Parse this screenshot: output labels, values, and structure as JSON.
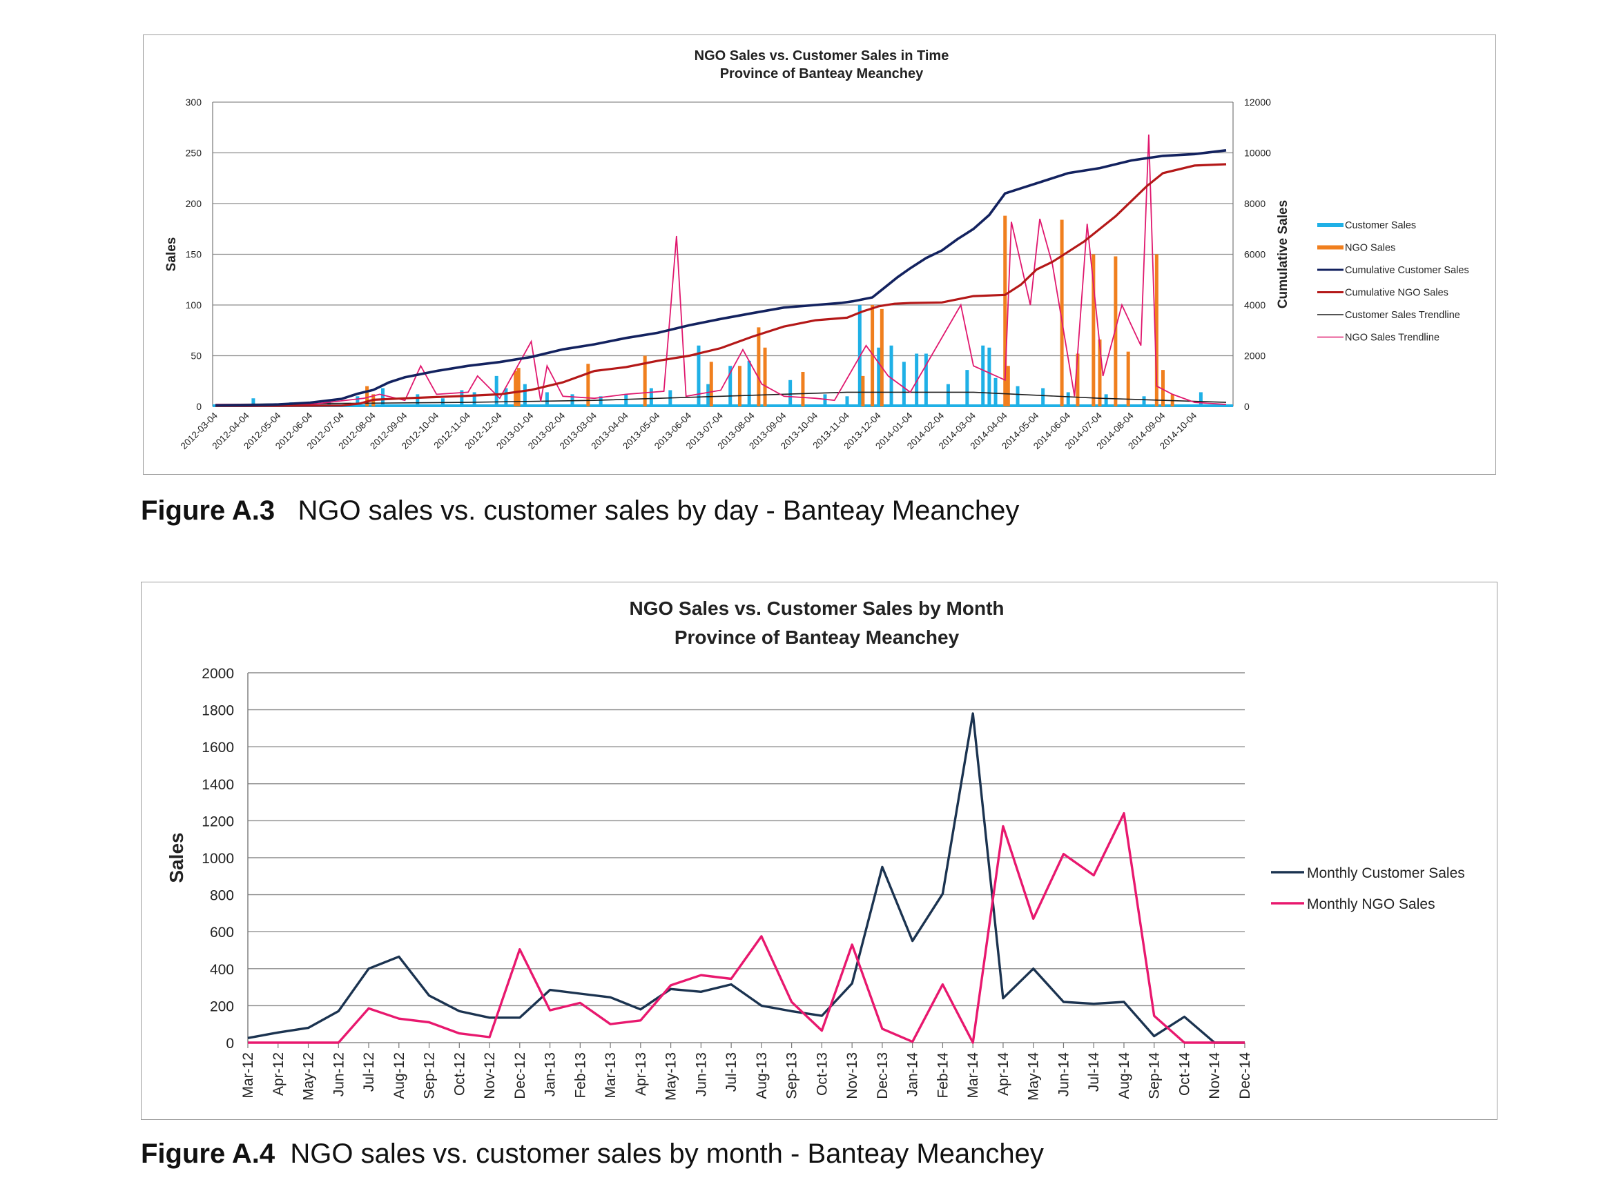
{
  "figures": [
    {
      "caption_label": "Figure A.3",
      "caption_text": "NGO sales vs. customer sales by day - Banteay Meanchey"
    },
    {
      "caption_label": "Figure A.4",
      "caption_text": "NGO sales vs. customer sales by month - Banteay Meanchey"
    }
  ],
  "colors": {
    "customer_sales": "#1fb0e6",
    "ngo_sales": "#f07f1e",
    "cumulative_customer": "#13225f",
    "cumulative_ngo": "#b41818",
    "customer_trend": "#1c1c1c",
    "ngo_trend": "#e0186e",
    "monthly_customer": "#1b3350",
    "monthly_ngo": "#e8186e",
    "grid": "#8c8c8c"
  },
  "chart_data": [
    {
      "type": "line",
      "title": "NGO Sales vs. Customer Sales in Time",
      "subtitle": "Province of Banteay Meanchey",
      "xlabel": "",
      "ylabel": "Sales",
      "y2label": "Cumulative Sales",
      "ylim": [
        0,
        300
      ],
      "y2lim": [
        0,
        12000
      ],
      "yticks": [
        0,
        50,
        100,
        150,
        200,
        250,
        300
      ],
      "y2ticks": [
        0,
        2000,
        4000,
        6000,
        8000,
        10000,
        12000
      ],
      "grid": true,
      "legend_position": "right",
      "categories": [
        "2012-03-04",
        "2012-04-04",
        "2012-05-04",
        "2012-06-04",
        "2012-07-04",
        "2012-08-04",
        "2012-09-04",
        "2012-10-04",
        "2012-11-04",
        "2012-12-04",
        "2013-01-04",
        "2013-02-04",
        "2013-03-04",
        "2013-04-04",
        "2013-05-04",
        "2013-06-04",
        "2013-07-04",
        "2013-08-04",
        "2013-09-04",
        "2013-10-04",
        "2013-11-04",
        "2013-12-04",
        "2014-01-04",
        "2014-02-04",
        "2014-03-04",
        "2014-04-04",
        "2014-05-04",
        "2014-06-04",
        "2014-07-04",
        "2014-08-04",
        "2014-09-04",
        "2014-10-04"
      ],
      "series": [
        {
          "name": "Customer Sales",
          "axis": "left",
          "style": "bars",
          "points": [
            [
              1.2,
              8
            ],
            [
              2.4,
              4
            ],
            [
              3.6,
              6
            ],
            [
              4.5,
              10
            ],
            [
              5.3,
              18
            ],
            [
              6.4,
              12
            ],
            [
              7.2,
              8
            ],
            [
              7.8,
              16
            ],
            [
              8.2,
              14
            ],
            [
              8.9,
              30
            ],
            [
              9.2,
              18
            ],
            [
              9.8,
              22
            ],
            [
              10.5,
              14
            ],
            [
              11.3,
              12
            ],
            [
              12.2,
              10
            ],
            [
              13.0,
              12
            ],
            [
              13.8,
              18
            ],
            [
              14.4,
              16
            ],
            [
              15.3,
              60
            ],
            [
              15.6,
              22
            ],
            [
              16.3,
              40
            ],
            [
              16.9,
              45
            ],
            [
              17.4,
              20
            ],
            [
              18.2,
              26
            ],
            [
              19.3,
              12
            ],
            [
              20.0,
              10
            ],
            [
              20.4,
              100
            ],
            [
              21.0,
              58
            ],
            [
              21.4,
              60
            ],
            [
              21.8,
              44
            ],
            [
              22.2,
              52
            ],
            [
              22.5,
              52
            ],
            [
              23.2,
              22
            ],
            [
              23.8,
              36
            ],
            [
              24.3,
              60
            ],
            [
              24.5,
              58
            ],
            [
              24.7,
              28
            ],
            [
              25.4,
              20
            ],
            [
              26.2,
              18
            ],
            [
              27.0,
              14
            ],
            [
              28.2,
              12
            ],
            [
              29.4,
              10
            ],
            [
              30.0,
              8
            ],
            [
              31.2,
              14
            ]
          ]
        },
        {
          "name": "NGO Sales",
          "axis": "left",
          "style": "bars",
          "points": [
            [
              4.8,
              20
            ],
            [
              5.0,
              12
            ],
            [
              9.5,
              35
            ],
            [
              9.6,
              38
            ],
            [
              11.8,
              42
            ],
            [
              13.6,
              50
            ],
            [
              15.7,
              44
            ],
            [
              16.6,
              40
            ],
            [
              17.2,
              78
            ],
            [
              17.4,
              58
            ],
            [
              18.6,
              34
            ],
            [
              20.5,
              30
            ],
            [
              20.8,
              100
            ],
            [
              21.1,
              96
            ],
            [
              25.0,
              188
            ],
            [
              25.1,
              40
            ],
            [
              26.8,
              184
            ],
            [
              27.3,
              52
            ],
            [
              27.8,
              150
            ],
            [
              28.0,
              66
            ],
            [
              28.5,
              148
            ],
            [
              28.9,
              54
            ],
            [
              29.8,
              150
            ],
            [
              30.0,
              36
            ],
            [
              30.3,
              12
            ]
          ]
        },
        {
          "name": "Cumulative Customer Sales",
          "axis": "right",
          "style": "line",
          "points": [
            [
              0,
              40
            ],
            [
              1,
              50
            ],
            [
              2,
              80
            ],
            [
              3,
              150
            ],
            [
              4,
              300
            ],
            [
              4.5,
              500
            ],
            [
              5,
              650
            ],
            [
              5.5,
              950
            ],
            [
              6,
              1150
            ],
            [
              7,
              1400
            ],
            [
              8,
              1600
            ],
            [
              9,
              1750
            ],
            [
              10,
              1950
            ],
            [
              10.5,
              2100
            ],
            [
              11,
              2250
            ],
            [
              12,
              2450
            ],
            [
              13,
              2700
            ],
            [
              14,
              2900
            ],
            [
              15,
              3200
            ],
            [
              16,
              3450
            ],
            [
              17,
              3680
            ],
            [
              18,
              3900
            ],
            [
              19,
              4000
            ],
            [
              19.8,
              4080
            ],
            [
              20.2,
              4150
            ],
            [
              20.8,
              4300
            ],
            [
              21.2,
              4700
            ],
            [
              21.6,
              5100
            ],
            [
              22,
              5450
            ],
            [
              22.5,
              5850
            ],
            [
              23,
              6150
            ],
            [
              23.5,
              6600
            ],
            [
              24,
              7000
            ],
            [
              24.5,
              7550
            ],
            [
              25,
              8400
            ],
            [
              25.5,
              8600
            ],
            [
              26,
              8800
            ],
            [
              27,
              9200
            ],
            [
              28,
              9400
            ],
            [
              29,
              9700
            ],
            [
              30,
              9880
            ],
            [
              31,
              9950
            ],
            [
              32,
              10100
            ]
          ]
        },
        {
          "name": "Cumulative NGO Sales",
          "axis": "right",
          "style": "line",
          "points": [
            [
              0,
              20
            ],
            [
              1,
              20
            ],
            [
              2,
              25
            ],
            [
              3,
              30
            ],
            [
              4,
              35
            ],
            [
              4.6,
              120
            ],
            [
              5,
              260
            ],
            [
              6,
              320
            ],
            [
              7,
              370
            ],
            [
              8,
              420
            ],
            [
              9,
              480
            ],
            [
              10,
              650
            ],
            [
              11,
              950
            ],
            [
              12,
              1400
            ],
            [
              13,
              1550
            ],
            [
              14,
              1800
            ],
            [
              15,
              2000
            ],
            [
              16,
              2300
            ],
            [
              17,
              2750
            ],
            [
              18,
              3150
            ],
            [
              19,
              3400
            ],
            [
              20,
              3500
            ],
            [
              20.5,
              3750
            ],
            [
              21,
              3950
            ],
            [
              21.5,
              4050
            ],
            [
              22,
              4080
            ],
            [
              23,
              4100
            ],
            [
              24,
              4350
            ],
            [
              25,
              4400
            ],
            [
              25.5,
              4800
            ],
            [
              26,
              5400
            ],
            [
              26.5,
              5700
            ],
            [
              27,
              6100
            ],
            [
              27.5,
              6500
            ],
            [
              28,
              7000
            ],
            [
              28.5,
              7500
            ],
            [
              29,
              8100
            ],
            [
              29.5,
              8700
            ],
            [
              30,
              9200
            ],
            [
              31,
              9500
            ],
            [
              32,
              9550
            ]
          ]
        },
        {
          "name": "Customer Sales Trendline",
          "axis": "left",
          "style": "line",
          "points": [
            [
              0,
              2
            ],
            [
              4,
              3
            ],
            [
              8,
              4
            ],
            [
              12,
              6
            ],
            [
              16,
              10
            ],
            [
              20,
              14
            ],
            [
              24,
              14
            ],
            [
              28,
              8
            ],
            [
              32,
              4
            ]
          ]
        },
        {
          "name": "NGO Sales Trendline",
          "axis": "left",
          "style": "line",
          "points": [
            [
              0,
              2
            ],
            [
              3,
              2
            ],
            [
              4.7,
              8
            ],
            [
              5.2,
              12
            ],
            [
              6,
              6
            ],
            [
              6.5,
              40
            ],
            [
              7,
              12
            ],
            [
              8,
              14
            ],
            [
              8.3,
              30
            ],
            [
              9,
              8
            ],
            [
              10,
              64
            ],
            [
              10.3,
              5
            ],
            [
              10.5,
              40
            ],
            [
              11,
              10
            ],
            [
              12,
              8
            ],
            [
              13,
              12
            ],
            [
              14.2,
              15
            ],
            [
              14.6,
              168
            ],
            [
              14.9,
              10
            ],
            [
              16,
              16
            ],
            [
              16.7,
              56
            ],
            [
              17.3,
              22
            ],
            [
              18,
              10
            ],
            [
              19,
              8
            ],
            [
              19.6,
              6
            ],
            [
              20.6,
              60
            ],
            [
              21.3,
              30
            ],
            [
              22,
              14
            ],
            [
              23.6,
              100
            ],
            [
              24,
              40
            ],
            [
              25,
              26
            ],
            [
              25.2,
              182
            ],
            [
              25.8,
              100
            ],
            [
              26.1,
              185
            ],
            [
              26.5,
              140
            ],
            [
              27.2,
              10
            ],
            [
              27.6,
              180
            ],
            [
              28.1,
              30
            ],
            [
              28.7,
              100
            ],
            [
              29.3,
              60
            ],
            [
              29.55,
              268
            ],
            [
              29.8,
              20
            ],
            [
              30.3,
              12
            ],
            [
              31,
              4
            ],
            [
              32,
              2
            ]
          ]
        }
      ],
      "legend": [
        "Customer Sales",
        "NGO Sales",
        "Cumulative Customer Sales",
        "Cumulative NGO Sales",
        "Customer Sales Trendline",
        "NGO Sales Trendline"
      ]
    },
    {
      "type": "line",
      "title": "NGO Sales vs. Customer Sales by Month",
      "subtitle": "Province of Banteay Meanchey",
      "xlabel": "",
      "ylabel": "Sales",
      "ylim": [
        0,
        2000
      ],
      "yticks": [
        0,
        200,
        400,
        600,
        800,
        1000,
        1200,
        1400,
        1600,
        1800,
        2000
      ],
      "grid": true,
      "legend_position": "right",
      "categories": [
        "Mar-12",
        "Apr-12",
        "May-12",
        "Jun-12",
        "Jul-12",
        "Aug-12",
        "Sep-12",
        "Oct-12",
        "Nov-12",
        "Dec-12",
        "Jan-13",
        "Feb-13",
        "Mar-13",
        "Apr-13",
        "May-13",
        "Jun-13",
        "Jul-13",
        "Aug-13",
        "Sep-13",
        "Oct-13",
        "Nov-13",
        "Dec-13",
        "Jan-14",
        "Feb-14",
        "Mar-14",
        "Apr-14",
        "May-14",
        "Jun-14",
        "Jul-14",
        "Aug-14",
        "Sep-14",
        "Oct-14",
        "Nov-14",
        "Dec-14"
      ],
      "series": [
        {
          "name": "Monthly Customer Sales",
          "values": [
            25,
            55,
            80,
            170,
            400,
            465,
            255,
            170,
            135,
            135,
            285,
            265,
            245,
            180,
            290,
            275,
            315,
            200,
            170,
            145,
            320,
            950,
            550,
            805,
            1780,
            240,
            400,
            220,
            210,
            220,
            35,
            140,
            0,
            0
          ]
        },
        {
          "name": "Monthly NGO Sales",
          "values": [
            0,
            0,
            0,
            0,
            185,
            130,
            110,
            50,
            30,
            505,
            175,
            215,
            100,
            120,
            310,
            365,
            345,
            575,
            220,
            65,
            530,
            75,
            5,
            315,
            0,
            1170,
            670,
            1020,
            905,
            1240,
            145,
            0,
            0,
            0
          ]
        }
      ],
      "legend": [
        "Monthly Customer Sales",
        "Monthly NGO Sales"
      ]
    }
  ]
}
